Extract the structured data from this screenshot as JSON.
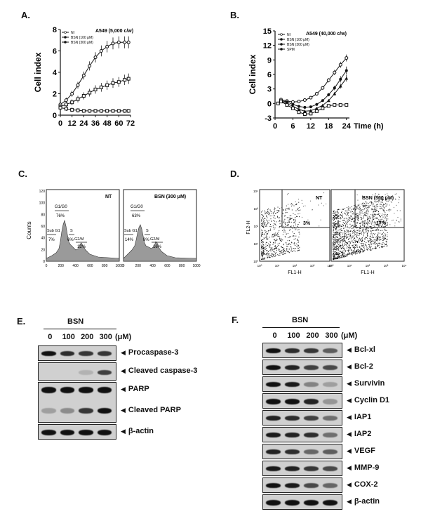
{
  "panels": {
    "A": {
      "label": "A.",
      "ylabel": "Cell index",
      "cell_line": "A549",
      "density": "(5,000 c/w)",
      "legend": [
        "NI",
        "BSN (100 μM)",
        "BSN (300 μM)"
      ],
      "xticks": [
        "0",
        "12",
        "24",
        "36",
        "48",
        "60",
        "72"
      ],
      "yticks": [
        "0",
        "2",
        "4",
        "6",
        "8"
      ]
    },
    "B": {
      "label": "B.",
      "ylabel": "Cell index",
      "xlabel": "Time (h)",
      "cell_line": "A549",
      "density": "(40,000 c/w)",
      "legend": [
        "NI",
        "BSN (100 μM)",
        "BSN (300 μM)",
        "SPM"
      ],
      "xticks": [
        "0",
        "6",
        "12",
        "18",
        "24"
      ],
      "yticks": [
        "-3",
        "0",
        "3",
        "6",
        "9",
        "12",
        "15"
      ]
    },
    "C": {
      "label": "C.",
      "ylabel": "Counts",
      "xticks": [
        "0",
        "200",
        "400",
        "600",
        "800",
        "1000"
      ],
      "yticks": [
        "0",
        "20",
        "40",
        "60",
        "80",
        "100",
        "120"
      ],
      "left_title": "NT",
      "right_title": "BSN (300 μM)",
      "left": {
        "g1": "G1/G0",
        "g1_pct": "76%",
        "sub": "Sub G1",
        "sub_pct": "7%",
        "s": "S",
        "s_pct": "6%",
        "g2": "G2/M",
        "g2_pct": "12%"
      },
      "right": {
        "g1": "G1/G0",
        "g1_pct": "63%",
        "sub": "Sub G1",
        "sub_pct": "14%",
        "s": "S",
        "s_pct": "8%",
        "g2": "G2/M",
        "g2_pct": "16%"
      }
    },
    "D": {
      "label": "D.",
      "ylabel": "FL2-H",
      "xlabel": "FL1-H",
      "left_title": "NT",
      "right_title": "BSN (300 μM)",
      "left_pct": "3%",
      "right_pct": "17%",
      "ticks": [
        "10⁰",
        "10¹",
        "10²",
        "10³",
        "10⁴"
      ]
    },
    "E": {
      "label": "E.",
      "treatment": "BSN",
      "doses": [
        "0",
        "100",
        "200",
        "300"
      ],
      "unit": "(μM)",
      "rows": [
        "Procaspase-3",
        "Cleaved caspase-3",
        "PARP",
        "Cleaved PARP",
        "β-actin"
      ]
    },
    "F": {
      "label": "F.",
      "treatment": "BSN",
      "doses": [
        "0",
        "100",
        "200",
        "300"
      ],
      "unit": "(μM)",
      "rows": [
        "Bcl-xl",
        "Bcl-2",
        "Survivin",
        "Cyclin D1",
        "IAP1",
        "IAP2",
        "VEGF",
        "MMP-9",
        "COX-2",
        "β-actin"
      ]
    }
  },
  "chart_data": [
    {
      "type": "line",
      "panel": "A",
      "ylabel": "Cell index",
      "x": [
        0,
        6,
        12,
        18,
        24,
        30,
        36,
        42,
        48,
        54,
        60,
        66,
        70
      ],
      "ylim": [
        0,
        8
      ],
      "xlim": [
        0,
        72
      ],
      "series": [
        {
          "name": "NI",
          "values": [
            1.0,
            1.4,
            2.0,
            2.8,
            3.7,
            4.6,
            5.4,
            6.0,
            6.4,
            6.7,
            6.8,
            6.8,
            6.8
          ]
        },
        {
          "name": "BSN (100 μM)",
          "values": [
            0.8,
            1.0,
            1.2,
            1.5,
            1.8,
            2.1,
            2.4,
            2.6,
            2.8,
            3.0,
            3.1,
            3.3,
            3.4
          ]
        },
        {
          "name": "BSN (300 μM)",
          "values": [
            0.7,
            0.6,
            0.5,
            0.45,
            0.4,
            0.4,
            0.4,
            0.4,
            0.4,
            0.4,
            0.4,
            0.4,
            0.4
          ]
        }
      ]
    },
    {
      "type": "line",
      "panel": "B",
      "ylabel": "Cell index",
      "xlabel": "Time (h)",
      "x": [
        1,
        2,
        4,
        6,
        8,
        10,
        12,
        14,
        16,
        18,
        20,
        22,
        24
      ],
      "ylim": [
        -3,
        15
      ],
      "xlim": [
        0,
        25
      ],
      "series": [
        {
          "name": "NI",
          "values": [
            0,
            0.8,
            0.5,
            0.3,
            0.4,
            0.7,
            1.2,
            2.0,
            3.2,
            4.8,
            6.4,
            8.0,
            9.4
          ]
        },
        {
          "name": "BSN (100 μM)",
          "values": [
            0,
            0.6,
            0.3,
            -0.2,
            -0.6,
            -0.8,
            -0.7,
            -0.2,
            0.6,
            1.8,
            3.2,
            5.0,
            6.8
          ]
        },
        {
          "name": "BSN (300 μM)",
          "values": [
            0,
            0.5,
            0,
            -0.6,
            -1.2,
            -1.6,
            -1.5,
            -1.0,
            -0.4,
            0.6,
            2.0,
            3.6,
            5.2
          ]
        },
        {
          "name": "SPM",
          "values": [
            0,
            0.4,
            -0.3,
            -1.0,
            -1.8,
            -2.2,
            -2.1,
            -1.6,
            -1.0,
            -0.5,
            -0.3,
            -0.3,
            -0.3
          ]
        }
      ]
    }
  ]
}
